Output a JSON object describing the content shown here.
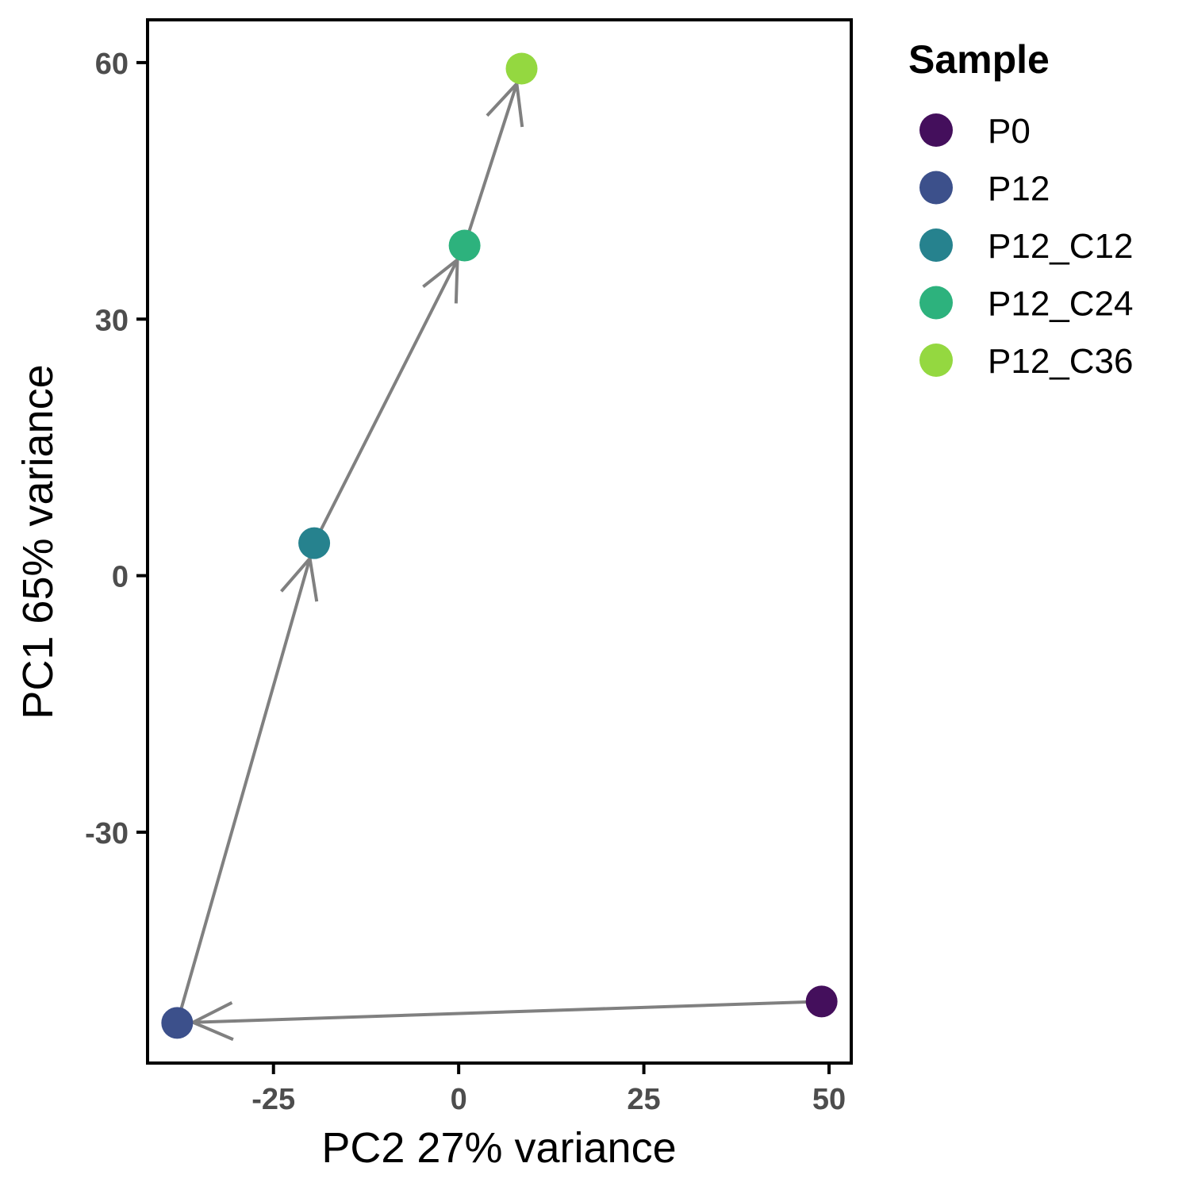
{
  "chart_data": {
    "type": "scatter",
    "xlabel": "PC2 27% variance",
    "ylabel": "PC1 65% variance",
    "xlim": [
      -42,
      53
    ],
    "ylim": [
      -57,
      65
    ],
    "x_ticks": [
      -25,
      0,
      25,
      50
    ],
    "x_tick_labels": [
      "-25",
      "0",
      "25",
      "50"
    ],
    "y_ticks": [
      -30,
      0,
      30,
      60
    ],
    "y_tick_labels": [
      "-30",
      "0",
      "30",
      "60"
    ],
    "grid": false,
    "legend": {
      "title": "Sample",
      "position": "right",
      "entries": [
        {
          "label": "P0",
          "color": "#440f5c"
        },
        {
          "label": "P12",
          "color": "#3c508b"
        },
        {
          "label": "P12_C12",
          "color": "#26828e"
        },
        {
          "label": "P12_C24",
          "color": "#2db27d"
        },
        {
          "label": "P12_C36",
          "color": "#94d840"
        }
      ]
    },
    "points": [
      {
        "sample": "P0",
        "x": 49,
        "y": -49.8
      },
      {
        "sample": "P12",
        "x": -38,
        "y": -52.3
      },
      {
        "sample": "P12_C12",
        "x": -19.5,
        "y": 3.8
      },
      {
        "sample": "P12_C24",
        "x": 0.8,
        "y": 38.6
      },
      {
        "sample": "P12_C36",
        "x": 8.5,
        "y": 59.3
      }
    ],
    "arrows": [
      {
        "from": "P0",
        "to": "P12"
      },
      {
        "from": "P12",
        "to": "P12_C12"
      },
      {
        "from": "P12_C12",
        "to": "P12_C24"
      },
      {
        "from": "P12_C24",
        "to": "P12_C36"
      }
    ],
    "arrow_color": "#808080"
  }
}
